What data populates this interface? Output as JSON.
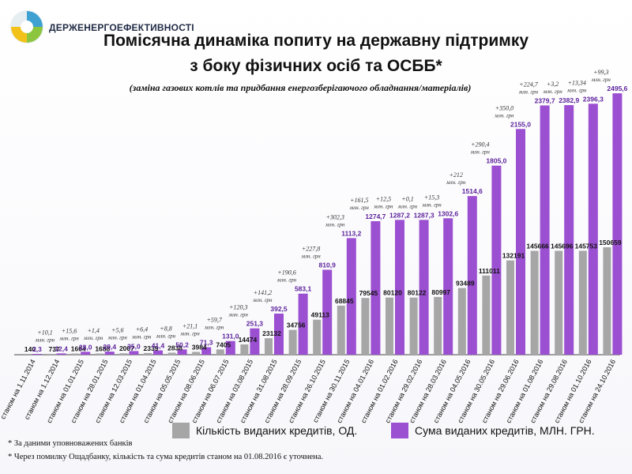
{
  "header": {
    "org_name": "ДЕРЖЕНЕРГОЕФЕКТИВНОСТІ",
    "title_line1": "Помісячна динаміка попиту на державну підтримку",
    "title_line2": "з боку фізичних осіб та ОСББ*",
    "subtitle": "(заміна газових котлів  та  придбання енергозберігаючого обладнання/матеріалів)"
  },
  "chart_data": {
    "type": "bar",
    "categories": [
      "станом на 1.11.2014",
      "станом на 1.12.2014",
      "станом на 01.01.2015",
      "станом на 28.01.2015",
      "станом на 12.03.2015",
      "станом на 01.04.2015",
      "станом на 05.05.2015",
      "станом на 08.06.2015",
      "станом на 06.07.2015",
      "станом на 03.08.2015",
      "станом на 31.08.2015",
      "станом на 28.09.2015",
      "станом на 26.10.2015",
      "станом на 30.11.2015",
      "станом на 04.01.2016",
      "станом на 01.02.2016",
      "станом на 29.02.2016",
      "станом на 28.03.2016",
      "станом на 04.05.2016",
      "станом на 30.05.2016",
      "станом на 29.06.2016",
      "станом на 01.08.2016",
      "станом на 29.08.2016",
      "станом на 01.10.2016",
      "станом на 24.10.2016"
    ],
    "series": [
      {
        "name": "Кількість виданих кредитів, ОД.",
        "color": "#a6a6a6",
        "values": [
          140,
          737,
          1604,
          1688,
          2007,
          2339,
          2838,
          3984,
          7405,
          14474,
          23132,
          34756,
          49113,
          68845,
          79545,
          80120,
          80122,
          80997,
          93489,
          111011,
          132191,
          145666,
          145696,
          145753,
          150659
        ],
        "labels": [
          "140",
          "737",
          "1604",
          "1688",
          "2007",
          "2339",
          "2838",
          "3984",
          "7405",
          "14474",
          "23132",
          "34756",
          "49113",
          "68845",
          "79545",
          "80120",
          "80122",
          "80997",
          "93489",
          "111011",
          "132191",
          "145666",
          "145696",
          "145753",
          "150659"
        ]
      },
      {
        "name": "Сума виданих кредитів, МЛН. ГРН.",
        "color": "#9b4fd1",
        "values": [
          2.3,
          12.4,
          28.0,
          29.4,
          35.0,
          41.4,
          50.2,
          71.3,
          131.0,
          251.3,
          392.5,
          583.1,
          810.9,
          1113.2,
          1274.7,
          1287.2,
          1287.3,
          1302.6,
          1514.6,
          1805.0,
          2155.0,
          2379.7,
          2382.9,
          2396.3,
          2495.6
        ],
        "labels": [
          "2,3",
          "12,4",
          "28,0",
          "29,4",
          "35,0",
          "41,4",
          "50,2",
          "71,3",
          "131,0",
          "251,3",
          "392,5",
          "583,1",
          "810,9",
          "1113,2",
          "1274,7",
          "1287,2",
          "1287,3",
          "1302,6",
          "1514,6",
          "1805,0",
          "2155,0",
          "2379,7",
          "2382,9",
          "2396,3",
          "2495,6"
        ]
      }
    ],
    "increments": [
      "+10,1",
      "+15,6",
      "+1,4",
      "+5,6",
      "+6,4",
      "+8,8",
      "+21,1",
      "+59,7",
      "+120,3",
      "+141,2",
      "+190,6",
      "+227,8",
      "+302,3",
      "+161,5",
      "+12,5",
      "+0,1",
      "+15,3",
      "+212",
      "+290,4",
      "+350,0",
      "+224,7",
      "+3,2",
      "+13,34",
      "+99,3"
    ],
    "increment_unit": "млн. грн",
    "ylim_amount": [
      0,
      2700
    ],
    "ylim_count": [
      0,
      450000
    ]
  },
  "footnotes": [
    "* За даними уповноважених банків",
    "* Через помилку Ощадбанку, кількість та сума кредитів станом на 01.08.2016 є уточнена."
  ]
}
